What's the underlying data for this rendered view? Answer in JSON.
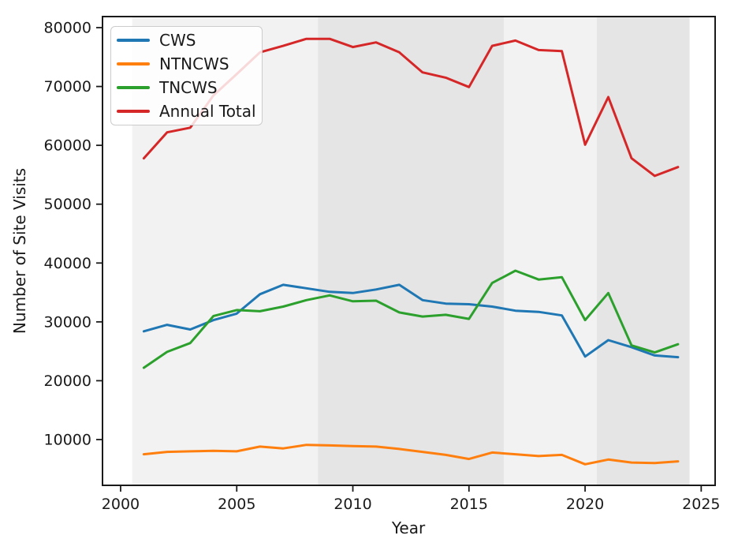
{
  "chart_data": {
    "type": "line",
    "title": "",
    "xlabel": "Year",
    "ylabel": "Number of Site Visits",
    "grid": false,
    "legend_position": "upper left",
    "xlim": [
      1999.22,
      2025.6
    ],
    "ylim": [
      2220,
      81880
    ],
    "x_ticks": [
      "2000",
      "2005",
      "2010",
      "2015",
      "2020",
      "2025"
    ],
    "x_tick_values": [
      2000,
      2005,
      2010,
      2015,
      2020,
      2025
    ],
    "y_ticks": [
      "10000",
      "20000",
      "30000",
      "40000",
      "50000",
      "60000",
      "70000",
      "80000"
    ],
    "y_tick_values": [
      10000,
      20000,
      30000,
      40000,
      50000,
      60000,
      70000,
      80000
    ],
    "x": [
      2001,
      2002,
      2003,
      2004,
      2005,
      2006,
      2007,
      2008,
      2009,
      2010,
      2011,
      2012,
      2013,
      2014,
      2015,
      2016,
      2017,
      2018,
      2019,
      2020,
      2021,
      2022,
      2023,
      2024
    ],
    "series": [
      {
        "name": "CWS",
        "color": "#1f77b4",
        "values": [
          28400,
          29500,
          28700,
          30300,
          31400,
          34700,
          36300,
          35700,
          35100,
          34900,
          35500,
          36300,
          33700,
          33100,
          33000,
          32600,
          31900,
          31700,
          31100,
          24100,
          26900,
          25700,
          24300,
          24000
        ]
      },
      {
        "name": "NTNCWS",
        "color": "#ff7f0e",
        "values": [
          7500,
          7900,
          8000,
          8100,
          8000,
          8800,
          8500,
          9100,
          9000,
          8900,
          8800,
          8400,
          7900,
          7400,
          6700,
          7800,
          7500,
          7200,
          7400,
          5800,
          6600,
          6100,
          6000,
          6300
        ]
      },
      {
        "name": "TNCWS",
        "color": "#2ca02c",
        "values": [
          22200,
          24900,
          26400,
          31000,
          32000,
          31800,
          32600,
          33700,
          34500,
          33500,
          33600,
          31600,
          30900,
          31200,
          30500,
          36600,
          38700,
          37200,
          37600,
          30300,
          34900,
          26000,
          24800,
          26200
        ]
      },
      {
        "name": "Annual Total",
        "color": "#d62728",
        "values": [
          57800,
          62200,
          63000,
          68500,
          72100,
          75800,
          76900,
          78100,
          78100,
          76700,
          77500,
          75800,
          72400,
          71500,
          69900,
          76900,
          77800,
          76200,
          76000,
          60100,
          68200,
          57800,
          54800,
          56300
        ]
      }
    ],
    "background_bands": [
      {
        "from": 2000.5,
        "to": 2008.5,
        "color": "#f2f2f2"
      },
      {
        "from": 2008.5,
        "to": 2016.5,
        "color": "#e5e5e5"
      },
      {
        "from": 2016.5,
        "to": 2020.5,
        "color": "#f2f2f2"
      },
      {
        "from": 2020.5,
        "to": 2024.5,
        "color": "#e5e5e5"
      }
    ]
  }
}
